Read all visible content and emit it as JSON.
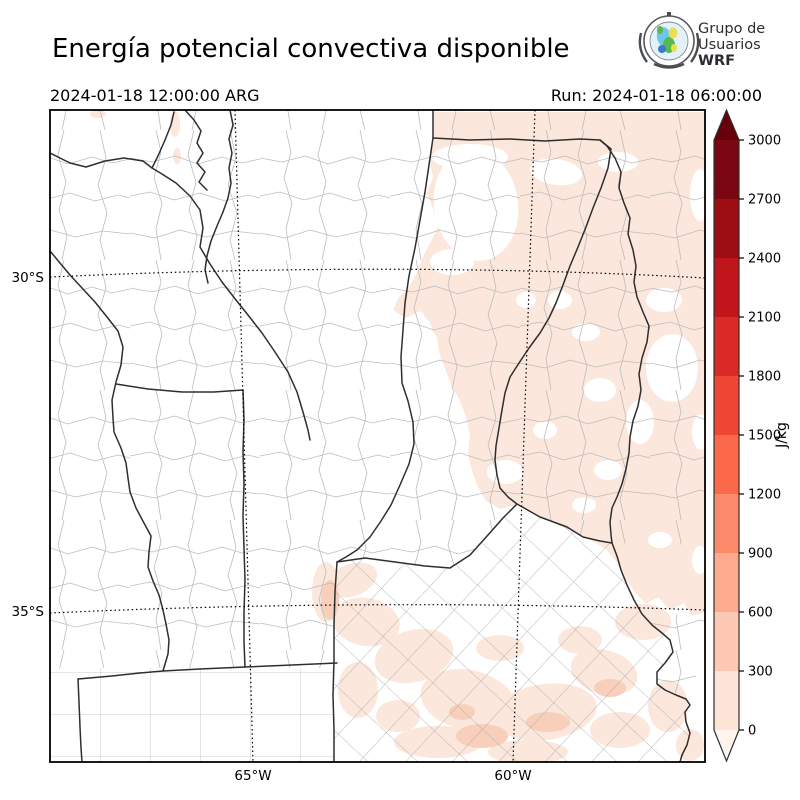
{
  "header": {
    "title": "Energía potencial convectiva disponible",
    "valid_time": "2024-01-18 12:00:00 ARG",
    "run_label": "Run: 2024-01-18 06:00:00"
  },
  "logo": {
    "line1": "Grupo de",
    "line2": "Usuarios",
    "line3": "WRF"
  },
  "map": {
    "lat_ticks": [
      {
        "label": "30°S"
      },
      {
        "label": "35°S"
      }
    ],
    "lon_ticks": [
      {
        "label": "65°W"
      },
      {
        "label": "60°W"
      }
    ],
    "colors": {
      "shade1": "#fbe7dc",
      "shade2": "#f7cfba",
      "prov": "#2e2e2e",
      "dept": "#bcbcbc",
      "grid45": "#a8a8a8",
      "grid": "#000000"
    }
  },
  "colorbar": {
    "units": "J/kg",
    "levels": [
      0,
      300,
      600,
      900,
      1200,
      1500,
      1800,
      2100,
      2400,
      2700,
      3000
    ],
    "colors": [
      "#fee3d7",
      "#fdc9b4",
      "#fcab8e",
      "#fc8a6b",
      "#fb694a",
      "#f04634",
      "#d92a25",
      "#c0161b",
      "#9c0d14",
      "#7a0611"
    ],
    "under_color": "#fff4ee",
    "over_color": "#67000d",
    "outline": "#2f2f2f"
  },
  "chart_data": {
    "type": "heatmap",
    "title": "Energía potencial convectiva disponible",
    "units": "J/kg",
    "colormap": "Reds",
    "levels": [
      0,
      300,
      600,
      900,
      1200,
      1500,
      1800,
      2100,
      2400,
      2700,
      3000
    ],
    "extent": {
      "lat_labels": [
        "30°S",
        "35°S"
      ],
      "lon_labels": [
        "65°W",
        "60°W"
      ]
    },
    "valid_time": "2024-01-18 12:00:00 ARG",
    "run": "2024-01-18 06:00:00",
    "summary": "CAPE shading mostly in the 0-300 J/kg class over the northeast and east of the domain (Chaco, Santa Fe, Entre Ríos, Río de la Plata and parts of Buenos Aires), with small 300-600 J/kg patches in southern Buenos Aires; the western half of the domain is near zero (white)."
  }
}
